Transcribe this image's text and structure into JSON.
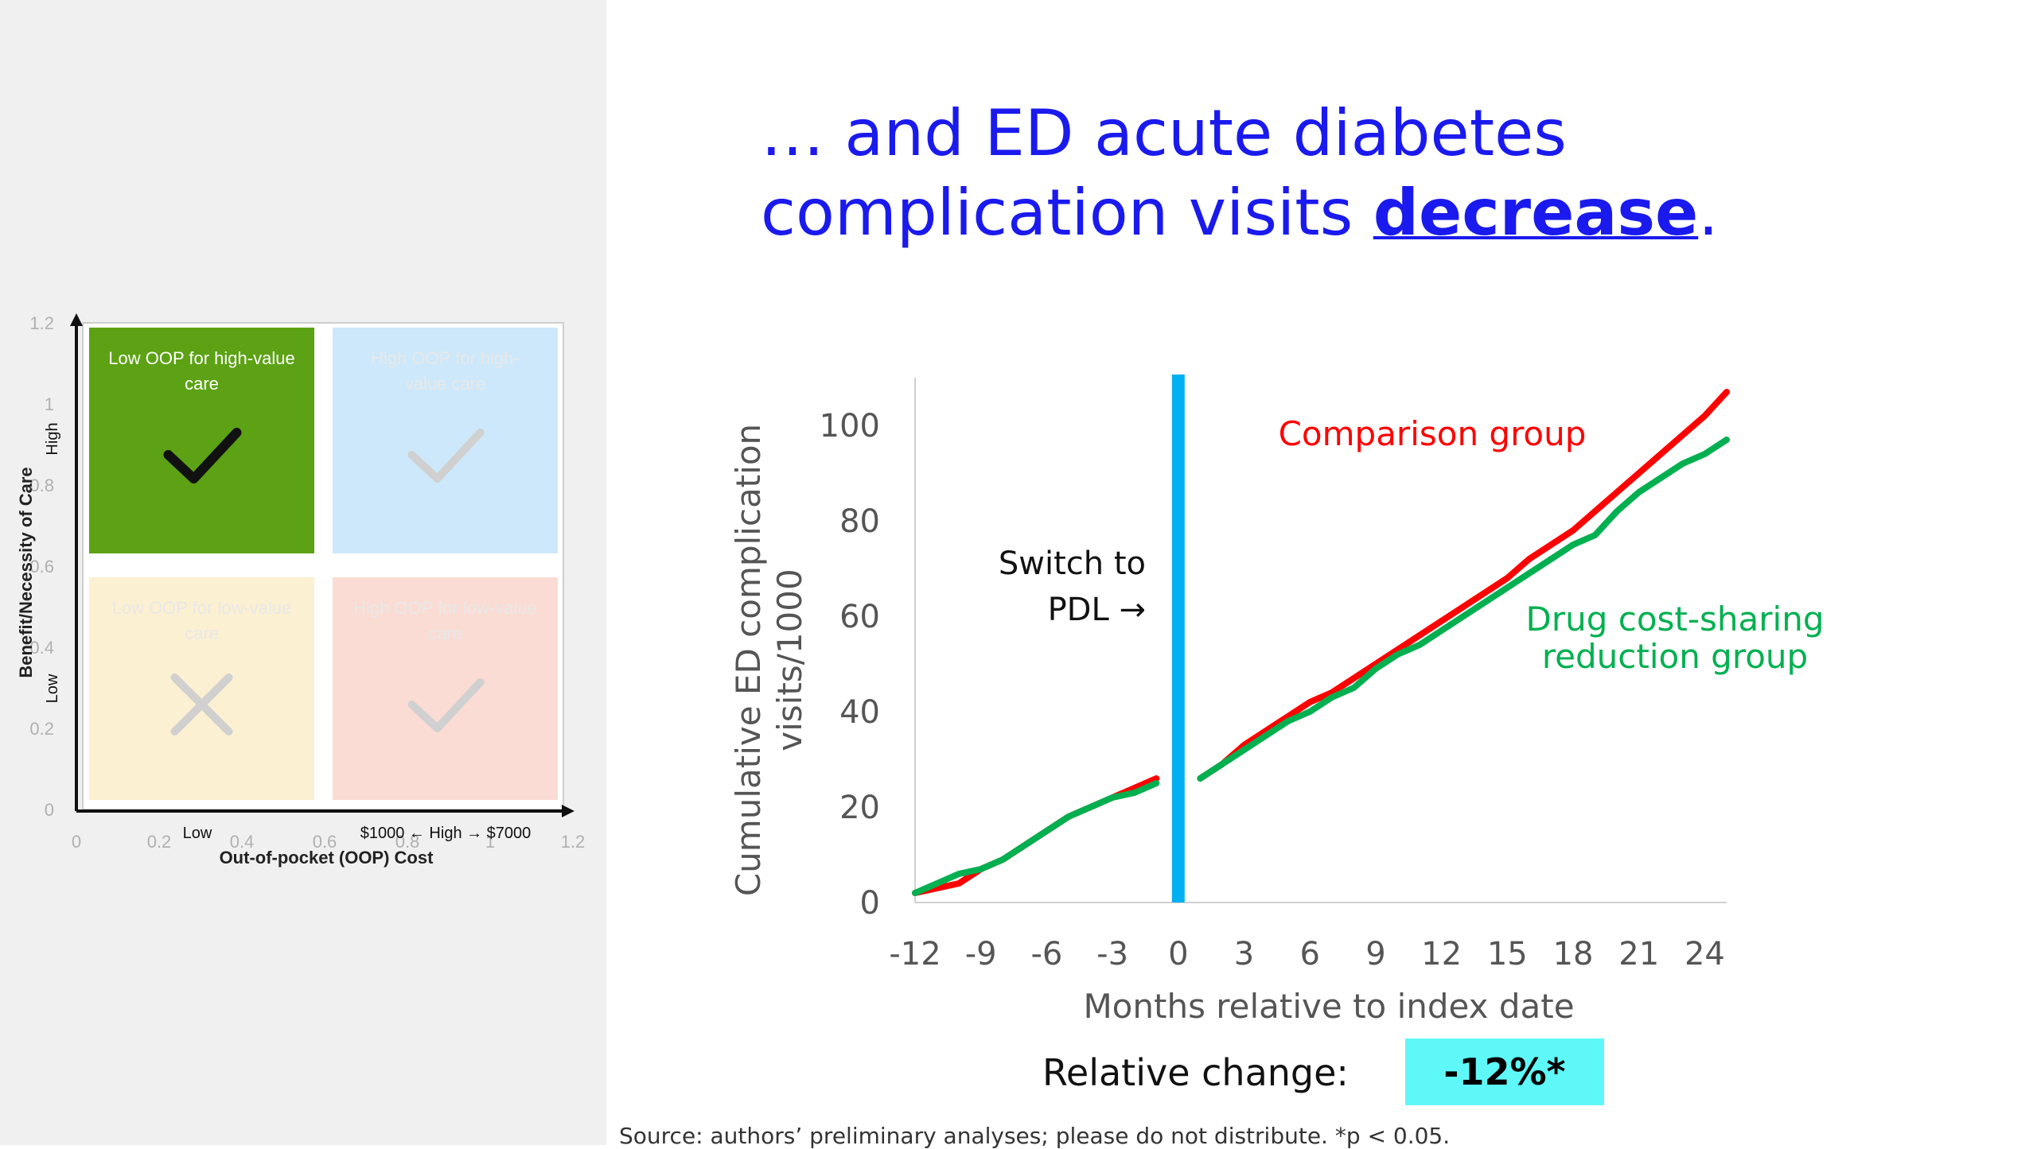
{
  "slide": {
    "title_part1": "… and ED acute diabetes complication visits ",
    "title_emph": "decrease",
    "title_end": ".",
    "footer": "Source: authors’ preliminary analyses; please do not distribute. *p < 0.05.",
    "relative_change_label": "Relative change:",
    "relative_change_value": "-12%*"
  },
  "colors": {
    "comparison": "#ff0000",
    "reduction": "#00b050",
    "switch_line": "#00b0f0",
    "title": "#1a1aee",
    "badge": "#5ff8f8"
  },
  "chart_data": [
    {
      "type": "line",
      "title": "",
      "xlabel": "Months relative to index date",
      "ylabel": "Cumulative ED complication visits/1000",
      "xlim": [
        -12,
        25
      ],
      "ylim": [
        0,
        110
      ],
      "x_ticks": [
        -12,
        -9,
        -6,
        -3,
        0,
        3,
        6,
        9,
        12,
        15,
        18,
        21,
        24
      ],
      "x_tick_labels": [
        "-12",
        "-9",
        "-6",
        "-3",
        "0",
        "3",
        "6",
        "9",
        "12",
        "15",
        "18",
        "21",
        "24"
      ],
      "y_ticks": [
        0,
        20,
        40,
        60,
        80,
        100
      ],
      "y_tick_labels": [
        "0",
        "20",
        "40",
        "60",
        "80",
        "100"
      ],
      "grid": false,
      "annotations": {
        "switch_label_line1": "Switch to",
        "switch_label_line2": "PDL →",
        "switch_x": 0
      },
      "series": [
        {
          "name": "Comparison group",
          "label_line1": "Comparison group",
          "segments": [
            {
              "x": [
                -12,
                -11,
                -10,
                -9,
                -8,
                -7,
                -6,
                -5,
                -4,
                -3,
                -2,
                -1
              ],
              "y": [
                2,
                3,
                4,
                7,
                9,
                12,
                15,
                18,
                20,
                22,
                24,
                26
              ]
            },
            {
              "x": [
                1,
                2,
                3,
                4,
                5,
                6,
                7,
                8,
                9,
                10,
                11,
                12,
                13,
                14,
                15,
                16,
                17,
                18,
                19,
                20,
                21,
                22,
                23,
                24,
                25
              ],
              "y": [
                26,
                29,
                33,
                36,
                39,
                42,
                44,
                47,
                50,
                53,
                56,
                59,
                62,
                65,
                68,
                72,
                75,
                78,
                82,
                86,
                90,
                94,
                98,
                102,
                107
              ]
            }
          ]
        },
        {
          "name": "Drug cost-sharing reduction group",
          "label_line1": "Drug cost-sharing",
          "label_line2": "reduction group",
          "segments": [
            {
              "x": [
                -12,
                -11,
                -10,
                -9,
                -8,
                -7,
                -6,
                -5,
                -4,
                -3,
                -2,
                -1
              ],
              "y": [
                2,
                4,
                6,
                7,
                9,
                12,
                15,
                18,
                20,
                22,
                23,
                25
              ]
            },
            {
              "x": [
                1,
                2,
                3,
                4,
                5,
                6,
                7,
                8,
                9,
                10,
                11,
                12,
                13,
                14,
                15,
                16,
                17,
                18,
                19,
                20,
                21,
                22,
                23,
                24,
                25
              ],
              "y": [
                26,
                29,
                32,
                35,
                38,
                40,
                43,
                45,
                49,
                52,
                54,
                57,
                60,
                63,
                66,
                69,
                72,
                75,
                77,
                82,
                86,
                89,
                92,
                94,
                97
              ]
            }
          ]
        }
      ]
    },
    {
      "type": "scatter",
      "title": "",
      "xlabel": "Out-of-pocket (OOP) Cost",
      "ylabel": "Benefit/Necessity of Care",
      "xlim": [
        0,
        1.2
      ],
      "ylim": [
        0,
        1.2
      ],
      "x_tick_labels": [
        "0",
        "0.2",
        "0.4",
        "0.6",
        "0.8",
        "1",
        "1.2"
      ],
      "y_tick_labels": [
        "0",
        "0.2",
        "0.4",
        "0.6",
        "0.8",
        "1",
        "1.2"
      ],
      "x_axis_annotations": {
        "low": "Low",
        "high": "$1000 ← High → $7000"
      },
      "y_axis_annotations": {
        "low": "Low",
        "high": "High"
      },
      "quadrants": [
        {
          "label_line1": "Low OOP for high-value",
          "label_line2": "care",
          "mark": "check",
          "faded": false,
          "color": "#5ca214"
        },
        {
          "label_line1": "High OOP for high-",
          "label_line2": "value care",
          "mark": "check",
          "faded": true,
          "color": "#cde8fa"
        },
        {
          "label_line1": "Low OOP for low-value",
          "label_line2": "care",
          "mark": "cross",
          "faded": true,
          "color": "#fcf0d2"
        },
        {
          "label_line1": "High OOP for low-value",
          "label_line2": "care",
          "mark": "check",
          "faded": true,
          "color": "#fadcd4"
        }
      ]
    }
  ]
}
